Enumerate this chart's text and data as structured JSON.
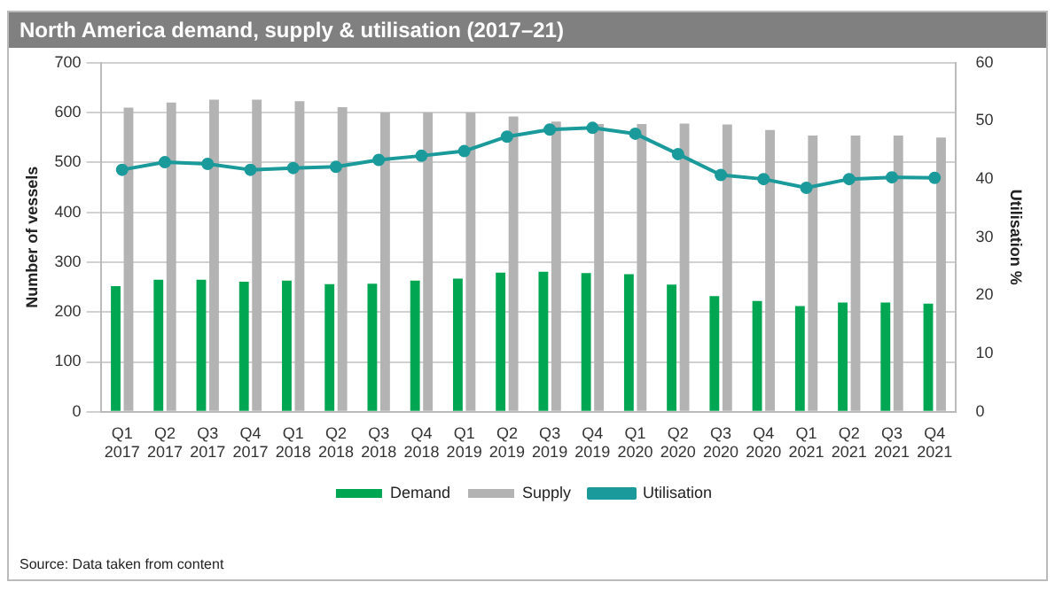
{
  "chart_data": {
    "type": "bar",
    "title": "North America demand, supply & utilisation (2017–21)",
    "ylabel": "Number of vessels",
    "y2label": "Utilisation %",
    "categories": [
      "Q1 2017",
      "Q2 2017",
      "Q3 2017",
      "Q4 2017",
      "Q1 2018",
      "Q2 2018",
      "Q3 2018",
      "Q4 2018",
      "Q1 2019",
      "Q2 2019",
      "Q3 2019",
      "Q4 2019",
      "Q1 2020",
      "Q2 2020",
      "Q3 2020",
      "Q4 2020",
      "Q1 2021",
      "Q2 2021",
      "Q3 2021",
      "Q4 2021"
    ],
    "series": [
      {
        "name": "Demand",
        "color": "#00a651",
        "values": [
          252,
          265,
          265,
          261,
          263,
          256,
          257,
          263,
          267,
          279,
          281,
          278,
          276,
          255,
          232,
          222,
          212,
          219,
          219,
          217
        ]
      },
      {
        "name": "Supply",
        "color": "#b3b3b3",
        "values": [
          610,
          620,
          626,
          626,
          623,
          611,
          600,
          600,
          600,
          592,
          582,
          577,
          577,
          578,
          576,
          565,
          554,
          554,
          554,
          550
        ]
      },
      {
        "name": "Utilisation",
        "type": "line",
        "axis": "y2",
        "color": "#1a9a9a",
        "values": [
          41.6,
          42.9,
          42.6,
          41.6,
          41.9,
          42.1,
          43.3,
          44.0,
          44.8,
          47.3,
          48.5,
          48.8,
          47.8,
          44.3,
          40.7,
          40.0,
          38.5,
          40.0,
          40.3,
          40.2
        ]
      }
    ],
    "ylim": [
      0,
      700
    ],
    "yticks": [
      0,
      100,
      200,
      300,
      400,
      500,
      600,
      700
    ],
    "y2lim": [
      0,
      60
    ],
    "y2ticks": [
      0,
      10,
      20,
      30,
      40,
      50,
      60
    ],
    "grid": "y",
    "legend": "bottom",
    "marker": "circle",
    "line_style": "solid",
    "annotations": [
      "Source: Data taken from content"
    ]
  }
}
